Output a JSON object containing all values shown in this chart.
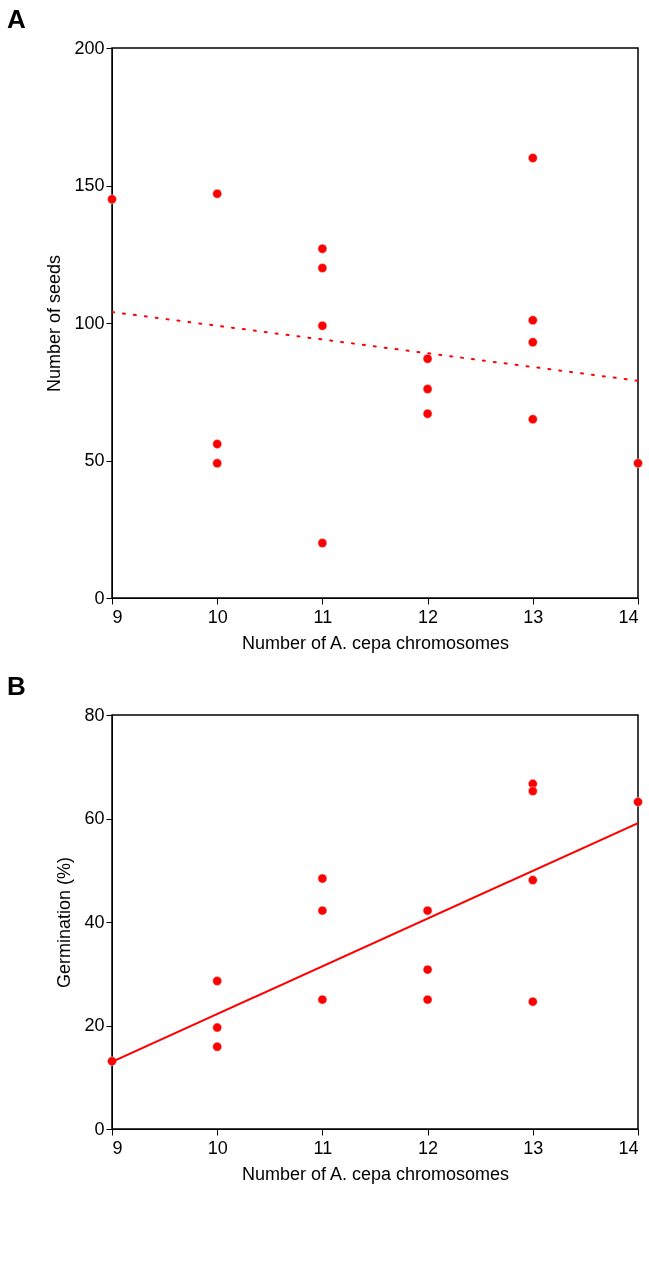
{
  "chart_data": [
    {
      "type": "scatter",
      "title": "A",
      "xlabel": "Number of A. cepa chromosomes",
      "ylabel": "Number of seeds",
      "xlim": [
        9,
        14
      ],
      "xticks": [
        9,
        10,
        11,
        12,
        13,
        14
      ],
      "ylim": [
        0,
        200
      ],
      "yticks": [
        0,
        50,
        100,
        150,
        200
      ],
      "grid": false,
      "series": [
        {
          "type": "scatter",
          "marker": "circle",
          "color": "#ff0000",
          "x": [
            9,
            10,
            10,
            10,
            11,
            11,
            11,
            11,
            12,
            12,
            12,
            13,
            13,
            13,
            13,
            14
          ],
          "values": [
            145,
            147,
            56,
            49,
            127,
            120,
            99,
            20,
            87,
            76,
            67,
            160,
            101,
            93,
            65,
            49
          ]
        },
        {
          "type": "line",
          "color": "#ff0000",
          "line_style": "dotted",
          "x": [
            9,
            14
          ],
          "values": [
            104,
            79
          ]
        }
      ]
    },
    {
      "type": "scatter",
      "title": "B",
      "xlabel": "Number of A. cepa chromosomes",
      "ylabel": "Germination (%)",
      "xlim": [
        9,
        14
      ],
      "xticks": [
        9,
        10,
        11,
        12,
        13,
        14
      ],
      "ylim": [
        0,
        80
      ],
      "yticks": [
        0,
        20,
        40,
        60,
        80
      ],
      "grid": false,
      "series": [
        {
          "type": "scatter",
          "marker": "circle",
          "color": "#ff0000",
          "x": [
            9,
            10,
            10,
            10,
            11,
            11,
            11,
            12,
            12,
            12,
            13,
            13,
            13,
            13,
            14
          ],
          "values": [
            13.1,
            28.6,
            19.6,
            15.9,
            48.4,
            42.2,
            25.0,
            42.2,
            30.8,
            25.0,
            66.7,
            65.3,
            48.1,
            24.6,
            63.2
          ]
        },
        {
          "type": "line",
          "color": "#ff0000",
          "line_style": "solid",
          "x": [
            9,
            14
          ],
          "values": [
            13.0,
            59.1
          ]
        }
      ]
    }
  ]
}
